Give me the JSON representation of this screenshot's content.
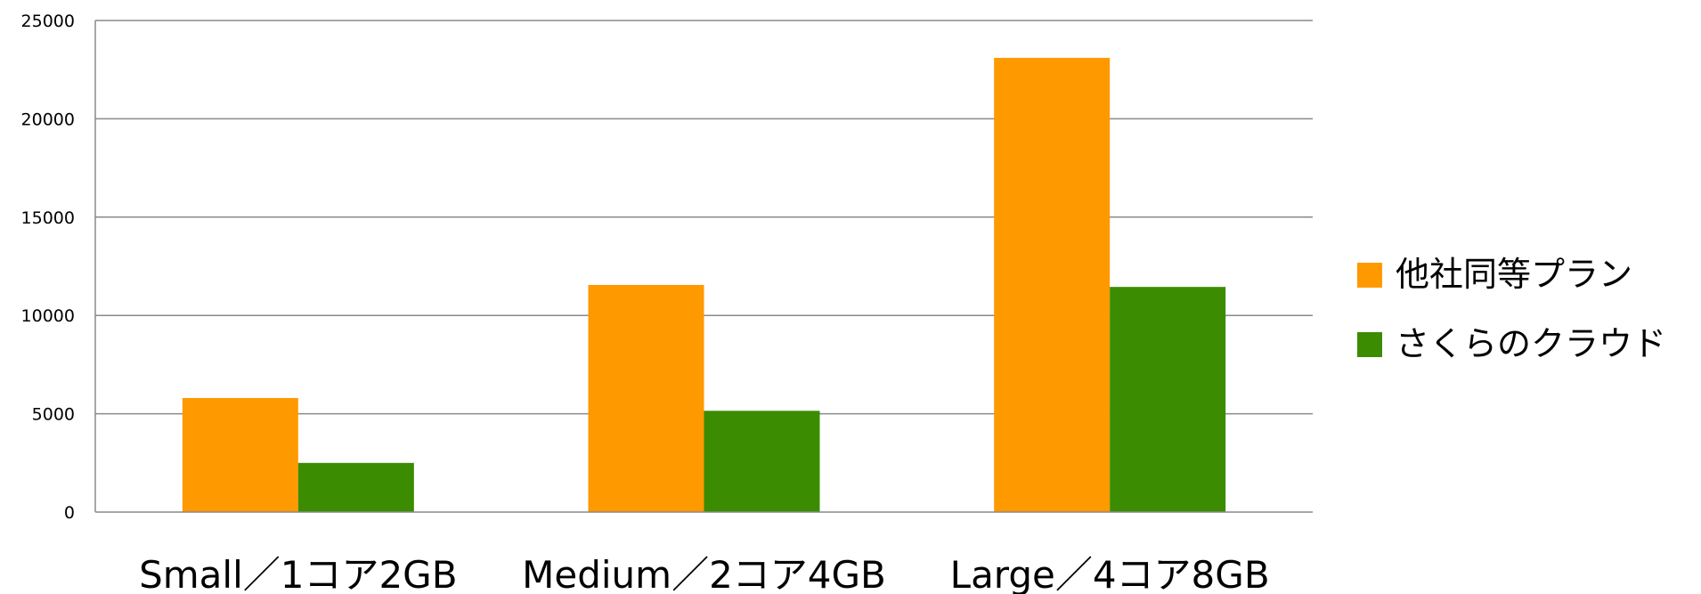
{
  "chart_data": {
    "type": "bar",
    "title": "",
    "xlabel": "",
    "ylabel": "",
    "categories": [
      "Small／1コア2GB",
      "Medium／2コア4GB",
      "Large／4コア8GB"
    ],
    "series": [
      {
        "name": "他社同等プラン",
        "color": "#FF9900",
        "values": [
          5800,
          11550,
          23100
        ]
      },
      {
        "name": "さくらのクラウド",
        "color": "#3B8C00",
        "values": [
          2500,
          5150,
          11450
        ]
      }
    ],
    "ylim": [
      0,
      25000
    ],
    "yticks": [
      "0",
      "5000",
      "10000",
      "15000",
      "20000",
      "25000"
    ],
    "grid": true,
    "legend_position": "right"
  }
}
